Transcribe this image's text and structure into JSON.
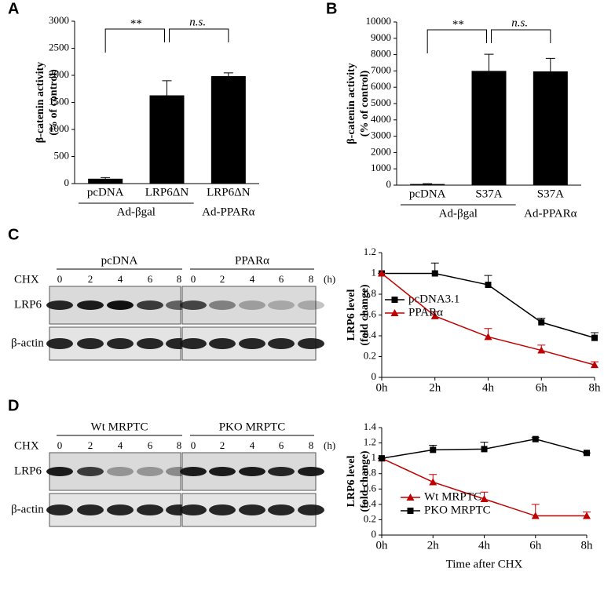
{
  "panel_labels": [
    "A",
    "B",
    "C",
    "D"
  ],
  "chart_data": [
    {
      "type": "bar",
      "ylabel": [
        "β-catenin activity",
        "(% of control)"
      ],
      "categories": [
        "pcDNA",
        "LRP6ΔN",
        "LRP6ΔN"
      ],
      "groups": [
        "Ad-βgal",
        "Ad-PPARα"
      ],
      "values": [
        90,
        1630,
        1985
      ],
      "errors": [
        20,
        270,
        60
      ],
      "color": "#000000",
      "ylim": [
        0,
        3000
      ],
      "yticks": [
        0,
        500,
        1000,
        1500,
        2000,
        2500,
        3000
      ],
      "annotations": [
        "**",
        "n.s."
      ]
    },
    {
      "type": "bar",
      "ylabel": [
        "β-catenin activity",
        "(% of control)"
      ],
      "categories": [
        "pcDNA",
        "S37A",
        "S37A"
      ],
      "groups": [
        "Ad-βgal",
        "Ad-PPARα"
      ],
      "values": [
        70,
        7000,
        6970
      ],
      "errors": [
        20,
        1020,
        800
      ],
      "color": "#000000",
      "ylim": [
        0,
        10000
      ],
      "yticks": [
        0,
        1000,
        2000,
        3000,
        4000,
        5000,
        6000,
        7000,
        8000,
        9000,
        10000
      ],
      "annotations": [
        "**",
        "n.s."
      ]
    },
    {
      "type": "line",
      "ylabel": [
        "LRP6 level",
        "(fold change)"
      ],
      "categories": [
        "0h",
        "2h",
        "4h",
        "6h",
        "8h"
      ],
      "ylim": [
        0,
        1.2
      ],
      "yticks": [
        0,
        0.2,
        0.4,
        0.6,
        0.8,
        1,
        1.2
      ],
      "series": [
        {
          "name": "pcDNA3.1",
          "color": "#000000",
          "marker": "square",
          "values": [
            1,
            1,
            0.89,
            0.53,
            0.38
          ],
          "errors": [
            0,
            0.1,
            0.09,
            0.04,
            0.05
          ]
        },
        {
          "name": "PPARα",
          "color": "#c00000",
          "marker": "triangle",
          "values": [
            1,
            0.59,
            0.39,
            0.26,
            0.12
          ],
          "errors": [
            0,
            0.04,
            0.08,
            0.05,
            0.03
          ]
        }
      ]
    },
    {
      "type": "line",
      "ylabel": [
        "LRP6 level",
        "(fold change)"
      ],
      "xlabel": "Time after CHX",
      "categories": [
        "0h",
        "2h",
        "4h",
        "6h",
        "8h"
      ],
      "ylim": [
        0,
        1.4
      ],
      "yticks": [
        0,
        0.2,
        0.4,
        0.6,
        0.8,
        1,
        1.2,
        1.4
      ],
      "series": [
        {
          "name": "Wt MRPTC",
          "color": "#c00000",
          "marker": "triangle",
          "values": [
            1,
            0.69,
            0.47,
            0.25,
            0.25
          ],
          "errors": [
            0,
            0.1,
            0.09,
            0.15,
            0.05
          ]
        },
        {
          "name": "PKO MRPTC",
          "color": "#000000",
          "marker": "square",
          "values": [
            1,
            1.11,
            1.12,
            1.25,
            1.07
          ],
          "errors": [
            0,
            0.06,
            0.09,
            0.02,
            0
          ]
        }
      ]
    }
  ],
  "blots": [
    {
      "groups": [
        "pcDNA",
        "PPARα"
      ],
      "treatment": "CHX",
      "times": [
        "0",
        "2",
        "4",
        "6",
        "8"
      ],
      "unit": "(h)",
      "rows": [
        "LRP6",
        "β-actin"
      ]
    },
    {
      "groups": [
        "Wt MRPTC",
        "PKO MRPTC"
      ],
      "treatment": "CHX",
      "times": [
        "0",
        "2",
        "4",
        "6",
        "8"
      ],
      "unit": "(h)",
      "rows": [
        "LRP6",
        "β-actin"
      ]
    }
  ]
}
